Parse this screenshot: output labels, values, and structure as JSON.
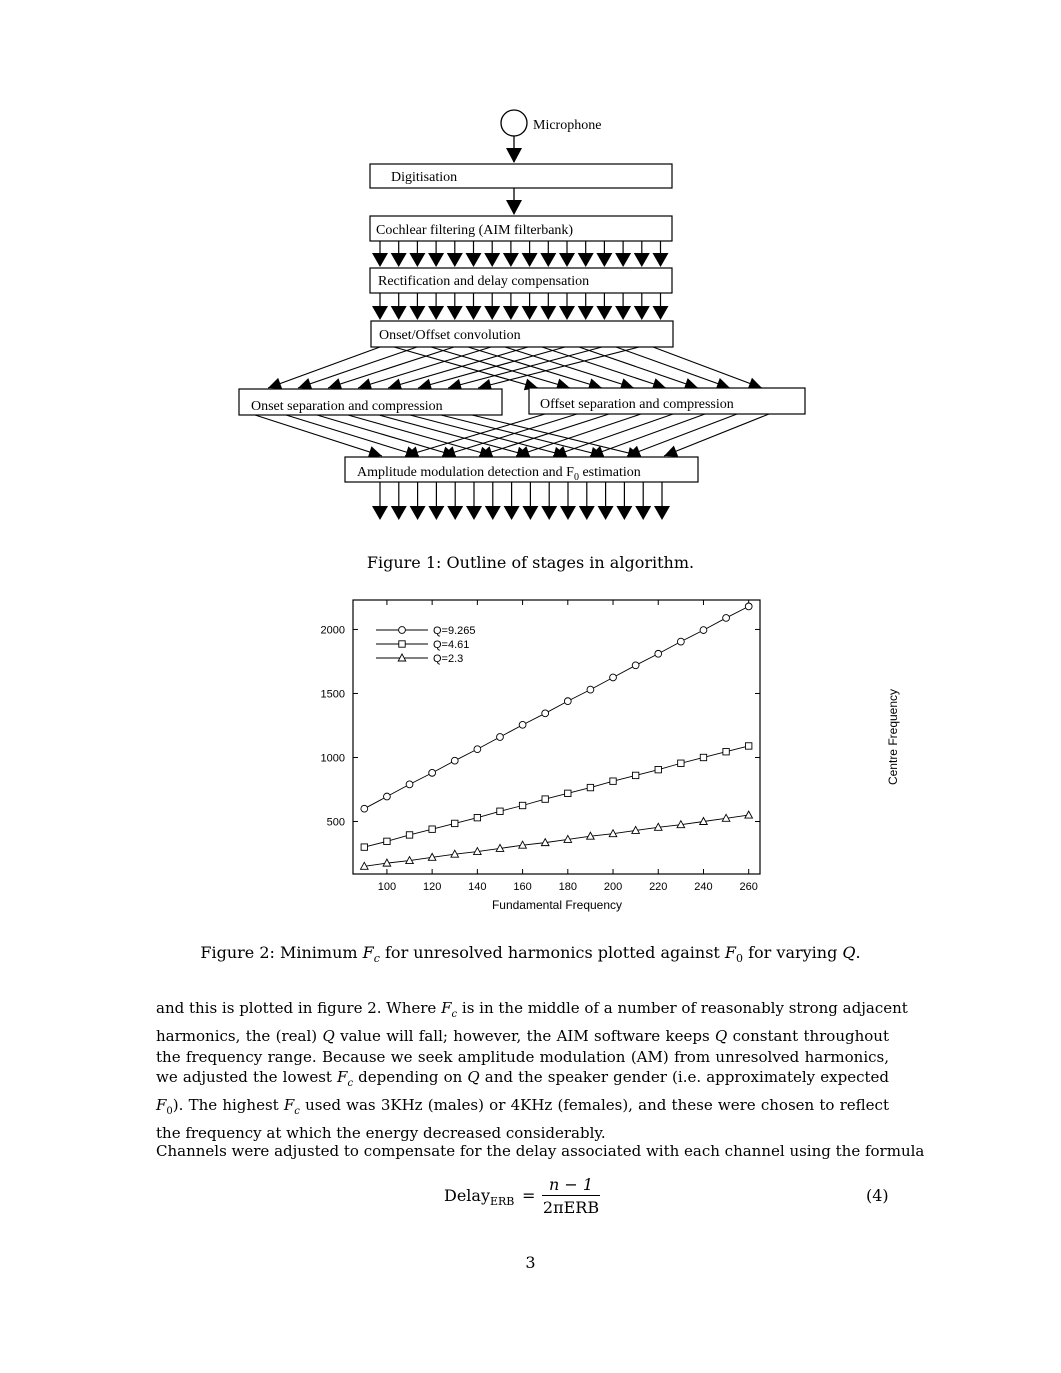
{
  "diagram": {
    "microphone": "Microphone",
    "digitisation": "Digitisation",
    "cochlear": "Cochlear filtering (AIM filterbank)",
    "rectification": "Rectification and delay compensation",
    "onset_offset": "Onset/Offset convolution",
    "onset_sep": "Onset separation and compression",
    "offset_sep": "Offset separation and compression",
    "am_detection_prefix": "Amplitude modulation detection and F",
    "am_detection_sub": "0",
    "am_detection_suffix": " estimation"
  },
  "figure1_caption": "Figure 1: Outline of stages in algorithm.",
  "chart_data": {
    "type": "line",
    "xlabel": "Fundamental Frequency",
    "ylabel": "Centre Frequency",
    "xlim": [
      85,
      265
    ],
    "ylim": [
      90,
      2230
    ],
    "xticks": [
      100,
      120,
      140,
      160,
      180,
      200,
      220,
      240,
      260
    ],
    "yticks": [
      500,
      1000,
      1500,
      2000
    ],
    "x": [
      90,
      100,
      110,
      120,
      130,
      140,
      150,
      160,
      170,
      180,
      190,
      200,
      210,
      220,
      230,
      240,
      250,
      260
    ],
    "series": [
      {
        "name": "Q=9.265",
        "marker": "circle",
        "values": [
          600,
          695,
          790,
          880,
          975,
          1065,
          1160,
          1255,
          1345,
          1440,
          1530,
          1625,
          1720,
          1810,
          1905,
          1995,
          2090,
          2180
        ]
      },
      {
        "name": "Q=4.61",
        "marker": "square",
        "values": [
          300,
          345,
          395,
          440,
          485,
          530,
          580,
          625,
          675,
          720,
          765,
          815,
          860,
          905,
          955,
          1000,
          1045,
          1090
        ]
      },
      {
        "name": "Q=2.3",
        "marker": "triangle",
        "values": [
          150,
          175,
          195,
          220,
          245,
          265,
          290,
          315,
          335,
          360,
          385,
          405,
          430,
          455,
          475,
          500,
          525,
          550
        ]
      }
    ],
    "legend_position": "top-left",
    "grid": false
  },
  "figure2_caption": {
    "prefix": "Figure 2: Minimum ",
    "fc": "F",
    "fc_sub": "c",
    "middle": " for unresolved harmonics plotted against ",
    "f0": "F",
    "f0_sub": "0",
    "mid2": " for varying ",
    "q": "Q",
    "end": "."
  },
  "paragraph1": {
    "l1a": "and this is plotted in figure 2. Where ",
    "l1b": " is in the middle of a number of reasonably strong adjacent",
    "l2a": "harmonics, the (real) ",
    "l2b": " value will fall; however, the AIM software keeps ",
    "l2c": " constant throughout",
    "l3": "the frequency range. Because we seek amplitude modulation (AM) from unresolved harmonics,",
    "l4a": "we adjusted the lowest ",
    "l4b": " depending on ",
    "l4c": " and the speaker gender (i.e. approximately expected",
    "l5a": "). The highest ",
    "l5b": " used was 3KHz (males) or 4KHz (females), and these were chosen to reflect",
    "l6": "the frequency at which the energy decreased considerably."
  },
  "paragraph2": "Channels were adjusted to compensate for the delay associated with each channel using the formula",
  "formula": {
    "lhs": "Delay",
    "lhs_sub": "ERB",
    "equals": "=",
    "numerator": "n − 1",
    "denominator": "2πERB",
    "number": "(4)"
  },
  "page_number": "3"
}
